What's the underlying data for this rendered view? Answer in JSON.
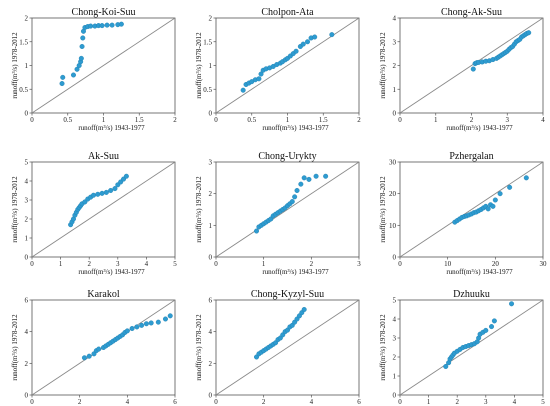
{
  "colors": {
    "point": "#2e9bd0",
    "point_edge": "#1f7fae",
    "reference_line": "#8a8a8a",
    "axis": "#555555"
  },
  "chart_data": [
    {
      "type": "scatter",
      "title": "Chong-Koi-Suu",
      "xlabel": "runoff(m³/s) 1943-1977",
      "ylabel": "runoff(m³/s) 1978-2012",
      "xlim": [
        0,
        2
      ],
      "ylim": [
        0,
        2
      ],
      "xticks": [
        0,
        0.5,
        1,
        1.5,
        2
      ],
      "yticks": [
        0,
        0.5,
        1,
        1.5,
        2
      ],
      "xtick_labels": [
        "0",
        "0.5",
        "1",
        "1.5",
        "2"
      ],
      "ytick_labels": [
        "0",
        "0.5",
        "1",
        "1.5",
        "2"
      ],
      "reference_line": "y = x",
      "points": [
        [
          0.42,
          0.62
        ],
        [
          0.43,
          0.75
        ],
        [
          0.58,
          0.8
        ],
        [
          0.63,
          0.92
        ],
        [
          0.66,
          1.0
        ],
        [
          0.68,
          1.08
        ],
        [
          0.69,
          1.15
        ],
        [
          0.7,
          1.4
        ],
        [
          0.71,
          1.58
        ],
        [
          0.72,
          1.72
        ],
        [
          0.74,
          1.8
        ],
        [
          0.78,
          1.82
        ],
        [
          0.82,
          1.83
        ],
        [
          0.88,
          1.83
        ],
        [
          0.93,
          1.84
        ],
        [
          0.98,
          1.84
        ],
        [
          1.05,
          1.85
        ],
        [
          1.12,
          1.85
        ],
        [
          1.2,
          1.86
        ],
        [
          1.25,
          1.87
        ]
      ]
    },
    {
      "type": "scatter",
      "title": "Cholpon-Ata",
      "xlabel": "runoff(m³/s) 1943-1977",
      "ylabel": "runoff(m³/s) 1978-2012",
      "xlim": [
        0,
        2
      ],
      "ylim": [
        0,
        2
      ],
      "xticks": [
        0,
        0.5,
        1,
        1.5,
        2
      ],
      "yticks": [
        0,
        0.5,
        1,
        1.5,
        2
      ],
      "xtick_labels": [
        "0",
        "0.5",
        "1",
        "1.5",
        "2"
      ],
      "ytick_labels": [
        "0",
        "0.5",
        "1",
        "1.5",
        "2"
      ],
      "reference_line": "y = x",
      "points": [
        [
          0.38,
          0.48
        ],
        [
          0.42,
          0.6
        ],
        [
          0.46,
          0.63
        ],
        [
          0.5,
          0.66
        ],
        [
          0.55,
          0.7
        ],
        [
          0.6,
          0.72
        ],
        [
          0.63,
          0.82
        ],
        [
          0.66,
          0.9
        ],
        [
          0.7,
          0.93
        ],
        [
          0.75,
          0.95
        ],
        [
          0.8,
          0.98
        ],
        [
          0.85,
          1.02
        ],
        [
          0.9,
          1.05
        ],
        [
          0.93,
          1.08
        ],
        [
          0.97,
          1.12
        ],
        [
          1.0,
          1.15
        ],
        [
          1.04,
          1.2
        ],
        [
          1.08,
          1.25
        ],
        [
          1.12,
          1.3
        ],
        [
          1.18,
          1.4
        ],
        [
          1.22,
          1.45
        ],
        [
          1.28,
          1.5
        ],
        [
          1.33,
          1.58
        ],
        [
          1.38,
          1.6
        ],
        [
          1.62,
          1.65
        ]
      ]
    },
    {
      "type": "scatter",
      "title": "Chong-Ak-Suu",
      "xlabel": "runoff(m³/s) 1943-1977",
      "ylabel": "runoff(m³/s) 1978-2012",
      "xlim": [
        0,
        4
      ],
      "ylim": [
        0,
        4
      ],
      "xticks": [
        0,
        1,
        2,
        3,
        4
      ],
      "yticks": [
        0,
        1,
        2,
        3,
        4
      ],
      "xtick_labels": [
        "0",
        "1",
        "2",
        "3",
        "4"
      ],
      "ytick_labels": [
        "0",
        "1",
        "2",
        "3",
        "4"
      ],
      "reference_line": "y = x",
      "points": [
        [
          2.05,
          1.85
        ],
        [
          2.1,
          2.08
        ],
        [
          2.15,
          2.12
        ],
        [
          2.2,
          2.13
        ],
        [
          2.3,
          2.15
        ],
        [
          2.4,
          2.18
        ],
        [
          2.5,
          2.2
        ],
        [
          2.6,
          2.25
        ],
        [
          2.7,
          2.3
        ],
        [
          2.75,
          2.35
        ],
        [
          2.8,
          2.4
        ],
        [
          2.85,
          2.45
        ],
        [
          2.9,
          2.5
        ],
        [
          2.95,
          2.55
        ],
        [
          3.0,
          2.6
        ],
        [
          3.05,
          2.68
        ],
        [
          3.1,
          2.75
        ],
        [
          3.15,
          2.8
        ],
        [
          3.2,
          2.9
        ],
        [
          3.25,
          3.0
        ],
        [
          3.3,
          3.05
        ],
        [
          3.35,
          3.1
        ],
        [
          3.4,
          3.2
        ],
        [
          3.45,
          3.25
        ],
        [
          3.5,
          3.3
        ],
        [
          3.55,
          3.35
        ],
        [
          3.6,
          3.38
        ]
      ]
    },
    {
      "type": "scatter",
      "title": "Ak-Suu",
      "xlabel": "runoff(m³/s) 1943-1977",
      "ylabel": "runoff(m³/s) 1978-2012",
      "xlim": [
        0,
        5
      ],
      "ylim": [
        0,
        5
      ],
      "xticks": [
        0,
        1,
        2,
        3,
        4,
        5
      ],
      "yticks": [
        0,
        1,
        2,
        3,
        4,
        5
      ],
      "xtick_labels": [
        "0",
        "1",
        "2",
        "3",
        "4",
        "5"
      ],
      "ytick_labels": [
        "0",
        "1",
        "2",
        "3",
        "4",
        "5"
      ],
      "reference_line": "y = x",
      "points": [
        [
          1.35,
          1.7
        ],
        [
          1.4,
          1.85
        ],
        [
          1.45,
          2.0
        ],
        [
          1.5,
          2.2
        ],
        [
          1.55,
          2.35
        ],
        [
          1.6,
          2.5
        ],
        [
          1.65,
          2.6
        ],
        [
          1.7,
          2.7
        ],
        [
          1.75,
          2.8
        ],
        [
          1.85,
          2.9
        ],
        [
          1.95,
          3.05
        ],
        [
          2.05,
          3.15
        ],
        [
          2.15,
          3.25
        ],
        [
          2.3,
          3.3
        ],
        [
          2.45,
          3.35
        ],
        [
          2.6,
          3.4
        ],
        [
          2.75,
          3.5
        ],
        [
          2.9,
          3.6
        ],
        [
          3.0,
          3.8
        ],
        [
          3.1,
          3.95
        ],
        [
          3.2,
          4.1
        ],
        [
          3.3,
          4.25
        ]
      ]
    },
    {
      "type": "scatter",
      "title": "Chong-Urykty",
      "xlabel": "runoff(m³/s) 1943-1977",
      "ylabel": "runoff(m³/s) 1978-2012",
      "xlim": [
        0,
        3
      ],
      "ylim": [
        0,
        3
      ],
      "xticks": [
        0,
        1,
        2,
        3
      ],
      "yticks": [
        0,
        1,
        2,
        3
      ],
      "xtick_labels": [
        "0",
        "1",
        "2",
        "3"
      ],
      "ytick_labels": [
        "0",
        "1",
        "2",
        "3"
      ],
      "reference_line": "y = x",
      "points": [
        [
          0.85,
          0.82
        ],
        [
          0.9,
          0.95
        ],
        [
          0.95,
          1.0
        ],
        [
          1.0,
          1.05
        ],
        [
          1.05,
          1.1
        ],
        [
          1.1,
          1.15
        ],
        [
          1.15,
          1.2
        ],
        [
          1.2,
          1.3
        ],
        [
          1.25,
          1.35
        ],
        [
          1.3,
          1.4
        ],
        [
          1.35,
          1.45
        ],
        [
          1.4,
          1.5
        ],
        [
          1.45,
          1.55
        ],
        [
          1.5,
          1.62
        ],
        [
          1.55,
          1.68
        ],
        [
          1.6,
          1.75
        ],
        [
          1.65,
          1.9
        ],
        [
          1.7,
          2.1
        ],
        [
          1.78,
          2.3
        ],
        [
          1.85,
          2.5
        ],
        [
          1.95,
          2.45
        ],
        [
          2.1,
          2.55
        ],
        [
          2.3,
          2.55
        ]
      ]
    },
    {
      "type": "scatter",
      "title": "Pzhergalan",
      "xlabel": "runoff(m³/s) 1943-1977",
      "ylabel": "runoff(m³/s) 1978-2012",
      "xlim": [
        0,
        30
      ],
      "ylim": [
        0,
        30
      ],
      "xticks": [
        0,
        10,
        20,
        30
      ],
      "yticks": [
        0,
        10,
        20,
        30
      ],
      "xtick_labels": [
        "0",
        "10",
        "20",
        "30"
      ],
      "ytick_labels": [
        "0",
        "10",
        "20",
        "30"
      ],
      "reference_line": "y = x",
      "points": [
        [
          11.5,
          11.0
        ],
        [
          12.0,
          11.5
        ],
        [
          12.5,
          12.0
        ],
        [
          13.0,
          12.5
        ],
        [
          13.5,
          12.8
        ],
        [
          14.0,
          13.0
        ],
        [
          14.5,
          13.3
        ],
        [
          15.0,
          13.6
        ],
        [
          15.5,
          14.0
        ],
        [
          16.0,
          14.2
        ],
        [
          16.5,
          14.6
        ],
        [
          17.0,
          15.0
        ],
        [
          17.5,
          15.5
        ],
        [
          18.0,
          16.0
        ],
        [
          18.5,
          15.2
        ],
        [
          19.0,
          16.5
        ],
        [
          19.5,
          16.0
        ],
        [
          20.0,
          18.0
        ],
        [
          21.0,
          20.0
        ],
        [
          23.0,
          22.0
        ],
        [
          26.5,
          25.0
        ]
      ]
    },
    {
      "type": "scatter",
      "title": "Karakol",
      "xlabel": "runoff(m³/s) 1943-1977",
      "ylabel": "runoff(m³/s) 1978-2012",
      "xlim": [
        0,
        6
      ],
      "ylim": [
        0,
        6
      ],
      "xticks": [
        0,
        2,
        4,
        6
      ],
      "yticks": [
        0,
        2,
        4,
        6
      ],
      "xtick_labels": [
        "0",
        "2",
        "4",
        "6"
      ],
      "ytick_labels": [
        "0",
        "2",
        "4",
        "6"
      ],
      "reference_line": "y = x",
      "points": [
        [
          2.2,
          2.35
        ],
        [
          2.4,
          2.45
        ],
        [
          2.6,
          2.6
        ],
        [
          2.7,
          2.8
        ],
        [
          2.8,
          2.9
        ],
        [
          3.0,
          3.0
        ],
        [
          3.1,
          3.1
        ],
        [
          3.2,
          3.2
        ],
        [
          3.3,
          3.3
        ],
        [
          3.4,
          3.4
        ],
        [
          3.5,
          3.5
        ],
        [
          3.6,
          3.6
        ],
        [
          3.7,
          3.7
        ],
        [
          3.8,
          3.8
        ],
        [
          3.9,
          3.95
        ],
        [
          4.0,
          4.05
        ],
        [
          4.2,
          4.2
        ],
        [
          4.4,
          4.3
        ],
        [
          4.6,
          4.4
        ],
        [
          4.8,
          4.5
        ],
        [
          5.0,
          4.55
        ],
        [
          5.3,
          4.6
        ],
        [
          5.6,
          4.8
        ],
        [
          5.8,
          5.0
        ]
      ]
    },
    {
      "type": "scatter",
      "title": "Chong-Kyzyl-Suu",
      "xlabel": "runoff(m³/s) 1943-1977",
      "ylabel": "runoff(m³/s) 1978-2012",
      "xlim": [
        0,
        6
      ],
      "ylim": [
        0,
        6
      ],
      "xticks": [
        0,
        2,
        4,
        6
      ],
      "yticks": [
        0,
        2,
        4,
        6
      ],
      "xtick_labels": [
        "0",
        "2",
        "4",
        "6"
      ],
      "ytick_labels": [
        "0",
        "2",
        "4",
        "6"
      ],
      "reference_line": "y = x",
      "points": [
        [
          1.7,
          2.4
        ],
        [
          1.8,
          2.6
        ],
        [
          1.9,
          2.7
        ],
        [
          2.0,
          2.8
        ],
        [
          2.1,
          2.9
        ],
        [
          2.2,
          3.0
        ],
        [
          2.3,
          3.1
        ],
        [
          2.4,
          3.2
        ],
        [
          2.5,
          3.3
        ],
        [
          2.6,
          3.5
        ],
        [
          2.7,
          3.6
        ],
        [
          2.8,
          3.8
        ],
        [
          2.9,
          4.0
        ],
        [
          3.0,
          4.1
        ],
        [
          3.1,
          4.3
        ],
        [
          3.2,
          4.4
        ],
        [
          3.3,
          4.6
        ],
        [
          3.4,
          4.8
        ],
        [
          3.5,
          5.0
        ],
        [
          3.6,
          5.2
        ],
        [
          3.7,
          5.4
        ]
      ]
    },
    {
      "type": "scatter",
      "title": "Dzhuuku",
      "xlabel": "runoff(m³/s) 1943-1977",
      "ylabel": "runoff(m³/s) 1978-2012",
      "xlim": [
        0,
        5
      ],
      "ylim": [
        0,
        5
      ],
      "xticks": [
        0,
        1,
        2,
        3,
        4,
        5
      ],
      "yticks": [
        0,
        1,
        2,
        3,
        4,
        5
      ],
      "xtick_labels": [
        "0",
        "1",
        "2",
        "3",
        "4",
        "5"
      ],
      "ytick_labels": [
        "0",
        "1",
        "2",
        "3",
        "4",
        "5"
      ],
      "reference_line": "y = x",
      "points": [
        [
          1.6,
          1.5
        ],
        [
          1.7,
          1.7
        ],
        [
          1.75,
          1.9
        ],
        [
          1.8,
          2.0
        ],
        [
          1.85,
          2.1
        ],
        [
          1.9,
          2.2
        ],
        [
          2.0,
          2.3
        ],
        [
          2.1,
          2.4
        ],
        [
          2.2,
          2.5
        ],
        [
          2.3,
          2.55
        ],
        [
          2.4,
          2.6
        ],
        [
          2.5,
          2.65
        ],
        [
          2.6,
          2.7
        ],
        [
          2.7,
          2.8
        ],
        [
          2.75,
          3.0
        ],
        [
          2.8,
          3.2
        ],
        [
          2.9,
          3.3
        ],
        [
          3.0,
          3.4
        ],
        [
          3.2,
          3.6
        ],
        [
          3.3,
          3.9
        ],
        [
          3.9,
          4.8
        ]
      ]
    }
  ]
}
